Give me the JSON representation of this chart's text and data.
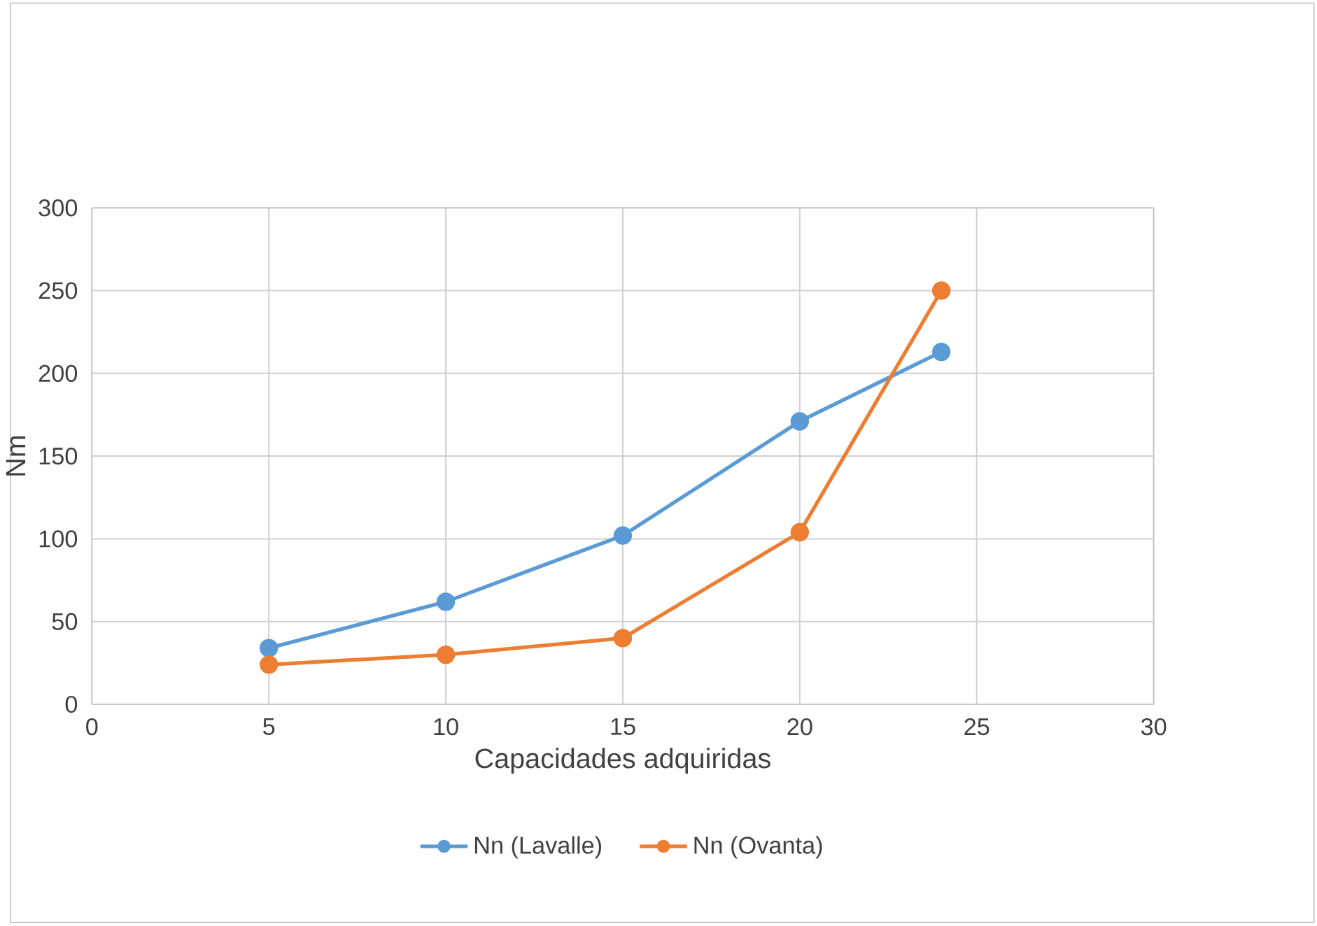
{
  "chart_data": {
    "type": "line",
    "xlabel": "Capacidades adquiridas",
    "ylabel": "Nm",
    "xlim": [
      0,
      30
    ],
    "xticks": [
      0,
      5,
      10,
      15,
      20,
      25,
      30
    ],
    "ylim": [
      0,
      300
    ],
    "yticks": [
      0,
      50,
      100,
      150,
      200,
      250,
      300
    ],
    "grid": true,
    "legend": "bottom",
    "marker": "circle",
    "line_style": "solid",
    "x": [
      5,
      10,
      15,
      20,
      24
    ],
    "series": [
      {
        "name": "Nn (Lavalle)",
        "color": "#5b9bd5",
        "values": [
          34,
          62,
          102,
          171,
          213
        ]
      },
      {
        "name": "Nn (Ovanta)",
        "color": "#ed7d31",
        "values": [
          24,
          30,
          40,
          104,
          250
        ]
      }
    ]
  }
}
